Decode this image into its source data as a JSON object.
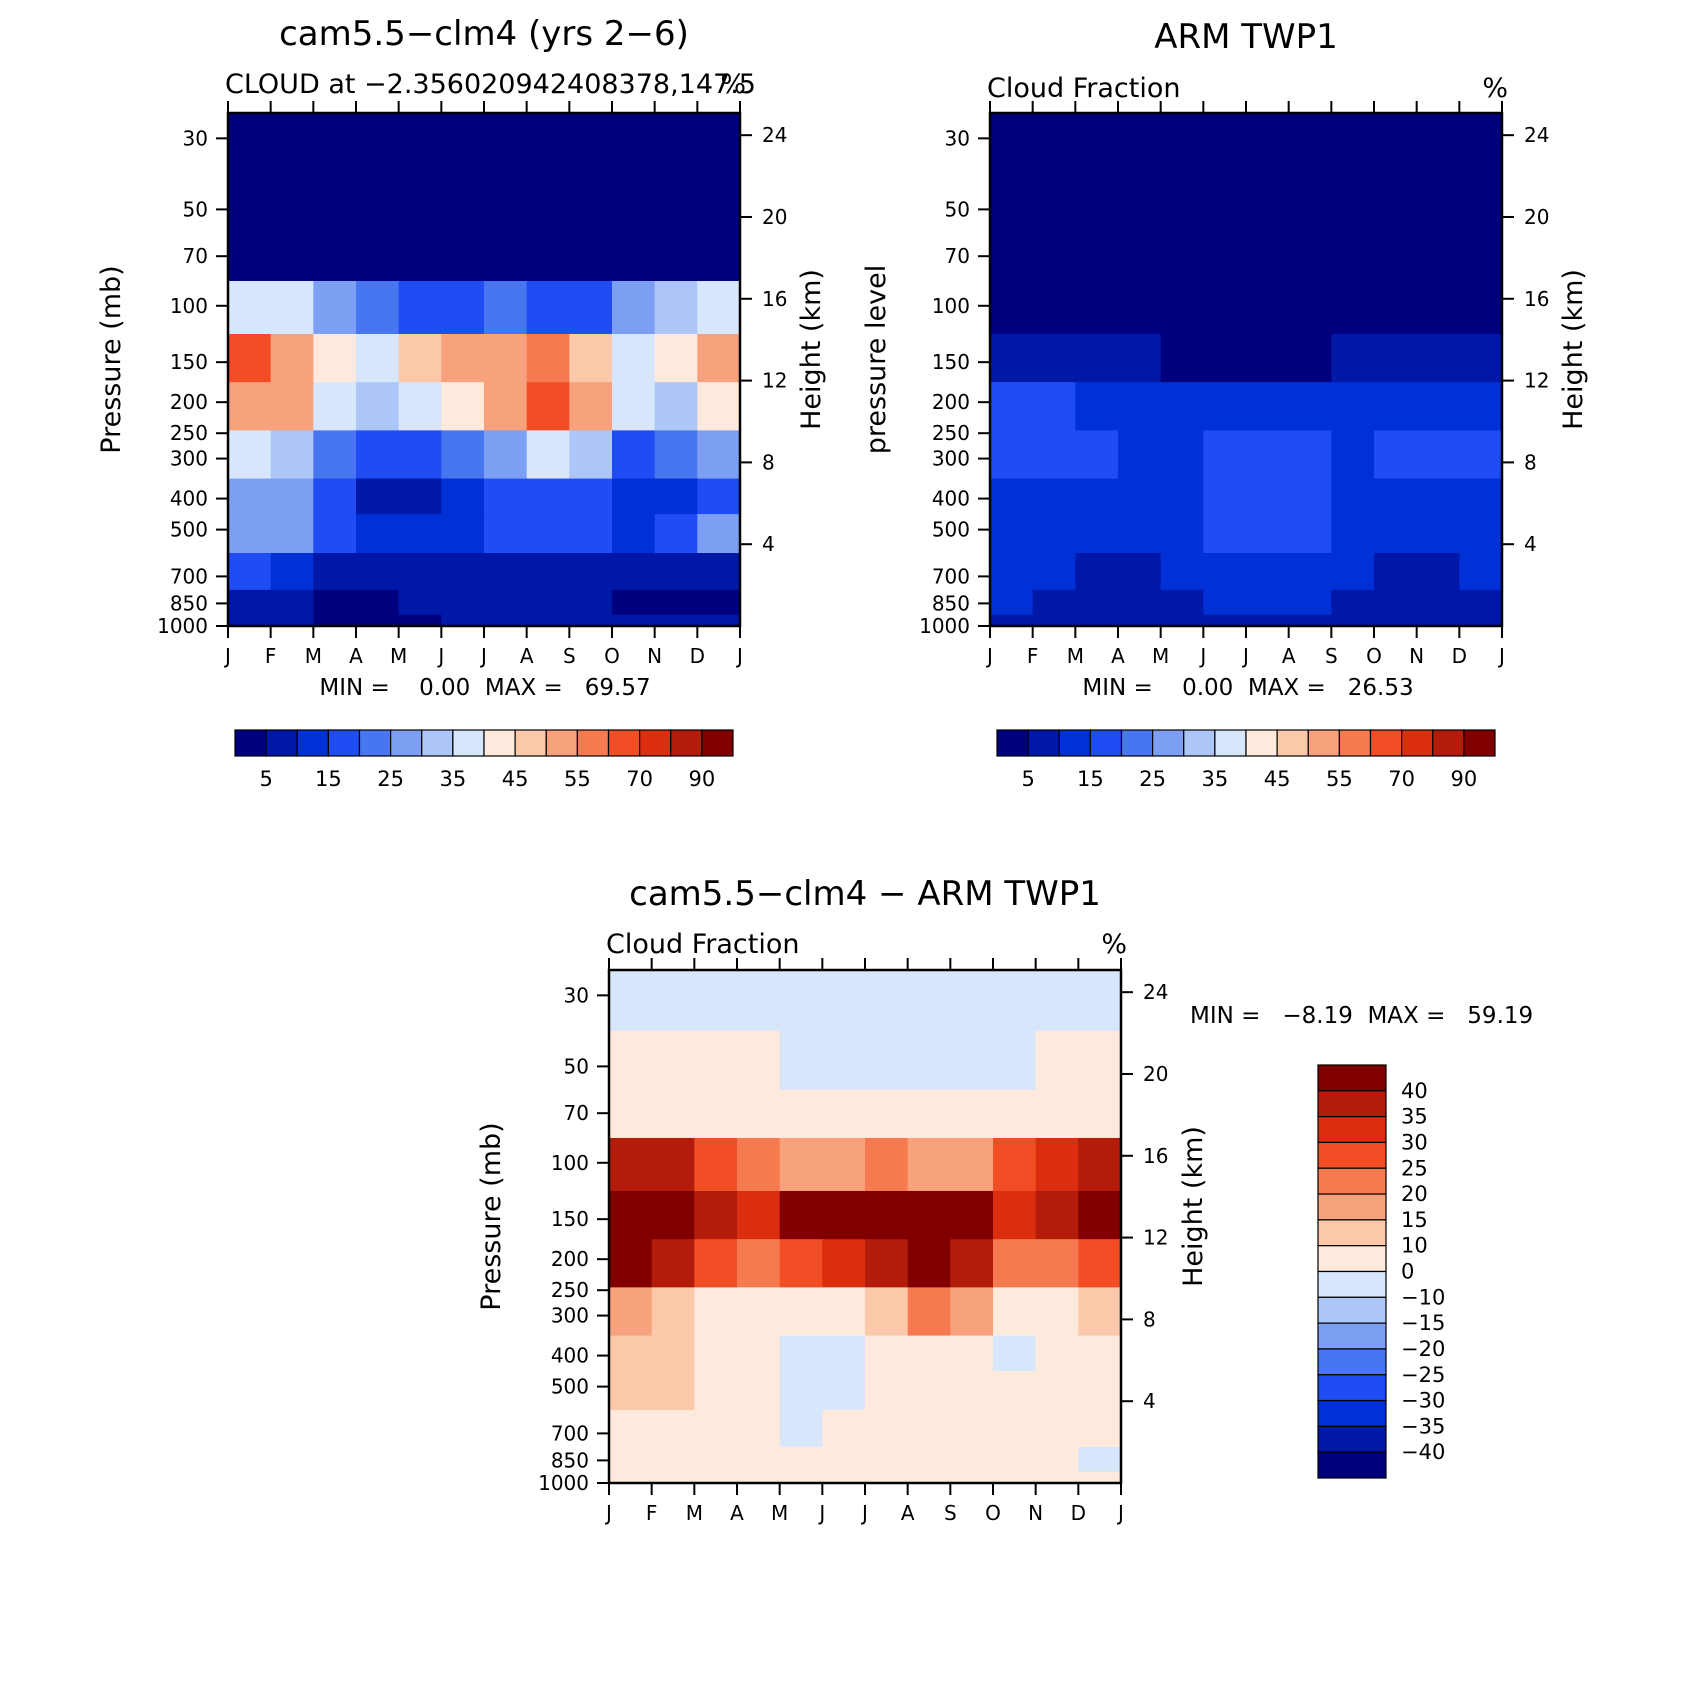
{
  "chart_data": [
    {
      "type": "heatmap",
      "title": "cam5.5−clm4 (yrs 2−6)",
      "subtitle_left": "CLOUD at −2.356020942408378,147.5",
      "subtitle_right": "%",
      "ylabel": "Pressure (mb)",
      "ylabel_right": "Height (km)",
      "x_ticks": [
        "J",
        "F",
        "M",
        "A",
        "M",
        "J",
        "J",
        "A",
        "S",
        "O",
        "N",
        "D",
        "J"
      ],
      "y_ticks": [
        30,
        50,
        70,
        100,
        150,
        200,
        250,
        300,
        400,
        500,
        700,
        850,
        1000
      ],
      "ylim": [
        1000,
        25
      ],
      "y_scale": "log",
      "height_ticks": [
        4,
        8,
        12,
        16,
        20,
        24
      ],
      "minmax_text": "MIN =    0.00  MAX =   69.57",
      "min": 0.0,
      "max": 69.57,
      "colorbar": {
        "orientation": "horizontal",
        "labels": [
          "5",
          "15",
          "25",
          "35",
          "45",
          "55",
          "70",
          "90"
        ],
        "colors": [
          "#00007f",
          "#0018a8",
          "#0031d6",
          "#1f4cf3",
          "#4876f0",
          "#7d9ff3",
          "#aec6f7",
          "#d7e6fb",
          "#feeadc",
          "#fbc8a9",
          "#f7a27c",
          "#f67a4f",
          "#f24e26",
          "#dc2e0f",
          "#b31b0a",
          "#800000"
        ]
      },
      "values_by_month": {
        "months": [
          "J",
          "F",
          "M",
          "A",
          "M",
          "J",
          "J",
          "A",
          "S",
          "O",
          "N",
          "D",
          "J"
        ],
        "levels_mb": [
          30,
          50,
          70,
          100,
          150,
          200,
          300,
          400,
          500,
          700,
          850,
          1000
        ],
        "values": [
          [
            0,
            0,
            0,
            0,
            0,
            0,
            0,
            0,
            0,
            0,
            0,
            0,
            0
          ],
          [
            0,
            0,
            0,
            0,
            0,
            0,
            0,
            0,
            0,
            0,
            0,
            0,
            0
          ],
          [
            3,
            3,
            2,
            1,
            1,
            1,
            0,
            0,
            0,
            1,
            2,
            3,
            3
          ],
          [
            35,
            40,
            30,
            25,
            18,
            15,
            20,
            20,
            15,
            20,
            30,
            35,
            35
          ],
          [
            60,
            65,
            42,
            38,
            35,
            55,
            45,
            62,
            55,
            40,
            38,
            48,
            55
          ],
          [
            45,
            60,
            40,
            30,
            30,
            45,
            40,
            60,
            62,
            40,
            30,
            38,
            45
          ],
          [
            35,
            35,
            25,
            20,
            15,
            20,
            20,
            30,
            40,
            20,
            18,
            25,
            30
          ],
          [
            25,
            30,
            20,
            12,
            6,
            10,
            15,
            18,
            20,
            10,
            12,
            15,
            20
          ],
          [
            28,
            30,
            25,
            12,
            10,
            12,
            15,
            18,
            20,
            12,
            12,
            20,
            30
          ],
          [
            18,
            15,
            10,
            8,
            8,
            10,
            8,
            8,
            8,
            10,
            8,
            8,
            10
          ],
          [
            10,
            8,
            5,
            3,
            3,
            8,
            8,
            8,
            8,
            6,
            3,
            3,
            5
          ],
          [
            5,
            5,
            5,
            4,
            4,
            5,
            5,
            5,
            5,
            5,
            5,
            5,
            5
          ]
        ]
      }
    },
    {
      "type": "heatmap",
      "title": "ARM TWP1",
      "subtitle_left": "Cloud Fraction",
      "subtitle_right": "%",
      "ylabel": "pressure level",
      "ylabel_right": "Height (km)",
      "x_ticks": [
        "J",
        "F",
        "M",
        "A",
        "M",
        "J",
        "J",
        "A",
        "S",
        "O",
        "N",
        "D",
        "J"
      ],
      "y_ticks": [
        30,
        50,
        70,
        100,
        150,
        200,
        250,
        300,
        400,
        500,
        700,
        850,
        1000
      ],
      "ylim": [
        1000,
        25
      ],
      "y_scale": "log",
      "height_ticks": [
        4,
        8,
        12,
        16,
        20,
        24
      ],
      "minmax_text": "MIN =    0.00  MAX =   26.53",
      "min": 0.0,
      "max": 26.53,
      "colorbar": {
        "orientation": "horizontal",
        "labels": [
          "5",
          "15",
          "25",
          "35",
          "45",
          "55",
          "70",
          "90"
        ],
        "colors": [
          "#00007f",
          "#0018a8",
          "#0031d6",
          "#1f4cf3",
          "#4876f0",
          "#7d9ff3",
          "#aec6f7",
          "#d7e6fb",
          "#feeadc",
          "#fbc8a9",
          "#f7a27c",
          "#f67a4f",
          "#f24e26",
          "#dc2e0f",
          "#b31b0a",
          "#800000"
        ]
      },
      "values_by_month": {
        "months": [
          "J",
          "F",
          "M",
          "A",
          "M",
          "J",
          "J",
          "A",
          "S",
          "O",
          "N",
          "D",
          "J"
        ],
        "levels_mb": [
          30,
          50,
          70,
          100,
          150,
          200,
          300,
          400,
          500,
          700,
          850,
          1000
        ],
        "values": [
          [
            0,
            0,
            0,
            0,
            0,
            0,
            0,
            0,
            0,
            0,
            0,
            0,
            0
          ],
          [
            0,
            0,
            0,
            0,
            0,
            0,
            0,
            0,
            0,
            0,
            0,
            0,
            0
          ],
          [
            0,
            0,
            0,
            0,
            0,
            0,
            0,
            0,
            0,
            0,
            0,
            0,
            0
          ],
          [
            3,
            2,
            2,
            1,
            0,
            0,
            0,
            0,
            0,
            0,
            0,
            1,
            2
          ],
          [
            8,
            7,
            7,
            6,
            5,
            3,
            3,
            4,
            5,
            5,
            5,
            6,
            8
          ],
          [
            15,
            15,
            15,
            12,
            12,
            12,
            14,
            14,
            14,
            12,
            14,
            14,
            15
          ],
          [
            18,
            20,
            18,
            12,
            14,
            14,
            22,
            17,
            15,
            14,
            17,
            18,
            20
          ],
          [
            14,
            14,
            14,
            10,
            14,
            15,
            18,
            17,
            14,
            12,
            14,
            14,
            15
          ],
          [
            14,
            14,
            12,
            8,
            12,
            14,
            17,
            18,
            17,
            12,
            14,
            14,
            14
          ],
          [
            14,
            12,
            10,
            6,
            10,
            12,
            14,
            14,
            14,
            8,
            8,
            10,
            12
          ],
          [
            12,
            10,
            8,
            5,
            8,
            10,
            10,
            10,
            10,
            6,
            6,
            8,
            10
          ],
          [
            5,
            5,
            5,
            5,
            5,
            5,
            5,
            5,
            5,
            5,
            5,
            5,
            5
          ]
        ]
      }
    },
    {
      "type": "heatmap",
      "title": "cam5.5−clm4 − ARM TWP1",
      "subtitle_left": "Cloud Fraction",
      "subtitle_right": "%",
      "ylabel": "Pressure (mb)",
      "ylabel_right": "Height (km)",
      "x_ticks": [
        "J",
        "F",
        "M",
        "A",
        "M",
        "J",
        "J",
        "A",
        "S",
        "O",
        "N",
        "D",
        "J"
      ],
      "y_ticks": [
        30,
        50,
        70,
        100,
        150,
        200,
        250,
        300,
        400,
        500,
        700,
        850,
        1000
      ],
      "ylim": [
        1000,
        25
      ],
      "y_scale": "log",
      "height_ticks": [
        4,
        8,
        12,
        16,
        20,
        24
      ],
      "minmax_text": "MIN =   −8.19  MAX =   59.19",
      "min": -8.19,
      "max": 59.19,
      "colorbar": {
        "orientation": "vertical",
        "labels": [
          "40",
          "35",
          "30",
          "25",
          "20",
          "15",
          "10",
          "0",
          "−10",
          "−15",
          "−20",
          "−25",
          "−30",
          "−35",
          "−40"
        ],
        "colors": [
          "#800000",
          "#b31b0a",
          "#dc2e0f",
          "#f24e26",
          "#f67a4f",
          "#f7a27c",
          "#fbc8a9",
          "#feeadc",
          "#d7e6fb",
          "#aec6f7",
          "#7d9ff3",
          "#4876f0",
          "#1f4cf3",
          "#0031d6",
          "#0018a8",
          "#00007f"
        ]
      },
      "values_by_month": {
        "months": [
          "J",
          "F",
          "M",
          "A",
          "M",
          "J",
          "J",
          "A",
          "S",
          "O",
          "N",
          "D",
          "J"
        ],
        "levels_mb": [
          30,
          50,
          70,
          100,
          150,
          200,
          300,
          400,
          500,
          700,
          850,
          1000
        ],
        "values": [
          [
            -2,
            -2,
            -2,
            -2,
            -2,
            -2,
            -2,
            -2,
            -2,
            -2,
            -2,
            -2,
            -2
          ],
          [
            3,
            3,
            3,
            3,
            -2,
            -2,
            -2,
            -2,
            -2,
            -2,
            -2,
            3,
            3
          ],
          [
            5,
            5,
            5,
            5,
            3,
            3,
            3,
            3,
            3,
            3,
            3,
            5,
            5
          ],
          [
            35,
            40,
            30,
            25,
            18,
            15,
            20,
            20,
            15,
            20,
            30,
            35,
            35
          ],
          [
            55,
            58,
            38,
            32,
            30,
            52,
            42,
            58,
            50,
            35,
            32,
            42,
            48
          ],
          [
            35,
            45,
            28,
            22,
            20,
            35,
            28,
            48,
            50,
            28,
            18,
            25,
            30
          ],
          [
            18,
            18,
            8,
            6,
            3,
            8,
            5,
            15,
            25,
            8,
            3,
            8,
            12
          ],
          [
            12,
            15,
            8,
            3,
            -3,
            -2,
            -2,
            3,
            6,
            -2,
            -3,
            3,
            6
          ],
          [
            14,
            15,
            12,
            4,
            -3,
            -3,
            -3,
            3,
            6,
            3,
            -2,
            3,
            10
          ],
          [
            5,
            4,
            3,
            3,
            -3,
            -2,
            3,
            3,
            3,
            4,
            3,
            -2,
            3
          ],
          [
            -3,
            3,
            3,
            3,
            -3,
            3,
            3,
            3,
            3,
            3,
            3,
            -3,
            -3
          ],
          [
            2,
            2,
            2,
            2,
            2,
            2,
            2,
            2,
            2,
            2,
            2,
            2,
            2
          ]
        ]
      }
    }
  ]
}
